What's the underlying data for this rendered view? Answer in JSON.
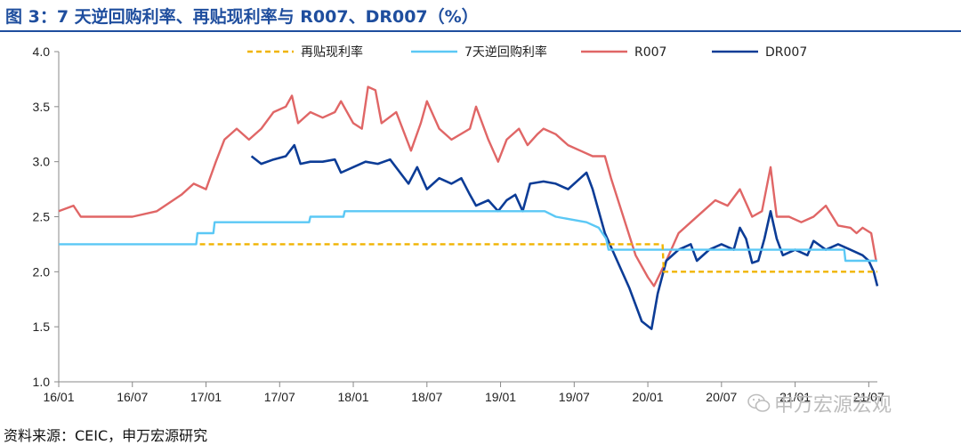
{
  "header": {
    "title": "图 3：7 天逆回购利率、再贴现利率与 R007、DR007（%）"
  },
  "footer": {
    "source": "资料来源：CEIC，申万宏源研究"
  },
  "watermark": {
    "text": "申万宏源宏观",
    "icon": "wechat-icon"
  },
  "chart_data": {
    "type": "line",
    "title": "图 3：7 天逆回购利率、再贴现利率与 R007、DR007（%）",
    "xlabel": "",
    "ylabel": "",
    "ylim": [
      1.0,
      4.0
    ],
    "yticks": [
      "4.0",
      "3.5",
      "3.0",
      "2.5",
      "2.0",
      "1.5",
      "1.0"
    ],
    "xticks": [
      "16/01",
      "16/07",
      "17/01",
      "17/07",
      "18/01",
      "18/07",
      "19/01",
      "19/07",
      "20/01",
      "20/07",
      "21/01",
      "21/07"
    ],
    "xlim": [
      0,
      66.7
    ],
    "grid": false,
    "legend": "top",
    "series": [
      {
        "name": "再贴现利率",
        "color": "#f0b400",
        "dash": true,
        "points": [
          [
            11.5,
            2.25
          ],
          [
            49.2,
            2.25
          ],
          [
            49.3,
            2.0
          ],
          [
            66.7,
            2.0
          ]
        ]
      },
      {
        "name": "7天逆回购利率",
        "color": "#5bc8f5",
        "dash": false,
        "points": [
          [
            0,
            2.25
          ],
          [
            11.2,
            2.25
          ],
          [
            11.3,
            2.35
          ],
          [
            12.6,
            2.35
          ],
          [
            12.7,
            2.45
          ],
          [
            20.4,
            2.45
          ],
          [
            20.5,
            2.5
          ],
          [
            23.2,
            2.5
          ],
          [
            23.3,
            2.55
          ],
          [
            39.6,
            2.55
          ],
          [
            40.5,
            2.5
          ],
          [
            43.0,
            2.45
          ],
          [
            44.0,
            2.4
          ],
          [
            44.6,
            2.3
          ],
          [
            44.8,
            2.2
          ],
          [
            64.0,
            2.2
          ],
          [
            64.1,
            2.1
          ],
          [
            66.7,
            2.1
          ]
        ]
      },
      {
        "name": "R007",
        "color": "#e06666",
        "dash": false,
        "points": [
          [
            0,
            2.55
          ],
          [
            1.2,
            2.6
          ],
          [
            1.8,
            2.5
          ],
          [
            4,
            2.5
          ],
          [
            6,
            2.5
          ],
          [
            8,
            2.55
          ],
          [
            10,
            2.7
          ],
          [
            11,
            2.8
          ],
          [
            12,
            2.75
          ],
          [
            12.8,
            3.0
          ],
          [
            13.5,
            3.2
          ],
          [
            14.5,
            3.3
          ],
          [
            15.5,
            3.2
          ],
          [
            16.5,
            3.3
          ],
          [
            17.5,
            3.45
          ],
          [
            18.5,
            3.5
          ],
          [
            19,
            3.6
          ],
          [
            19.5,
            3.35
          ],
          [
            20.5,
            3.45
          ],
          [
            21.5,
            3.4
          ],
          [
            22.5,
            3.45
          ],
          [
            23,
            3.55
          ],
          [
            24,
            3.35
          ],
          [
            24.7,
            3.3
          ],
          [
            25.2,
            3.68
          ],
          [
            25.8,
            3.65
          ],
          [
            26.3,
            3.35
          ],
          [
            27.5,
            3.45
          ],
          [
            28.7,
            3.1
          ],
          [
            29.5,
            3.35
          ],
          [
            30,
            3.55
          ],
          [
            31,
            3.3
          ],
          [
            32,
            3.2
          ],
          [
            33.5,
            3.3
          ],
          [
            34,
            3.5
          ],
          [
            35,
            3.2
          ],
          [
            35.8,
            3.0
          ],
          [
            36.5,
            3.2
          ],
          [
            37.5,
            3.3
          ],
          [
            38.2,
            3.15
          ],
          [
            39,
            3.25
          ],
          [
            39.5,
            3.3
          ],
          [
            40.5,
            3.25
          ],
          [
            41.5,
            3.15
          ],
          [
            42.5,
            3.1
          ],
          [
            43.5,
            3.05
          ],
          [
            44.5,
            3.05
          ],
          [
            45,
            2.85
          ],
          [
            46,
            2.5
          ],
          [
            47,
            2.15
          ],
          [
            48,
            1.95
          ],
          [
            48.5,
            1.87
          ],
          [
            49.5,
            2.1
          ],
          [
            50.5,
            2.35
          ],
          [
            51.5,
            2.45
          ],
          [
            52.5,
            2.55
          ],
          [
            53.5,
            2.65
          ],
          [
            54.5,
            2.6
          ],
          [
            55.5,
            2.75
          ],
          [
            56.5,
            2.5
          ],
          [
            57.3,
            2.55
          ],
          [
            58,
            2.95
          ],
          [
            58.5,
            2.5
          ],
          [
            59.5,
            2.5
          ],
          [
            60.5,
            2.45
          ],
          [
            61.5,
            2.5
          ],
          [
            62.5,
            2.6
          ],
          [
            63.5,
            2.42
          ],
          [
            64.5,
            2.4
          ],
          [
            65,
            2.35
          ],
          [
            65.5,
            2.4
          ],
          [
            66.2,
            2.35
          ],
          [
            66.6,
            2.1
          ]
        ]
      },
      {
        "name": "DR007",
        "color": "#0c3c96",
        "dash": false,
        "points": [
          [
            15.7,
            3.05
          ],
          [
            16.5,
            2.98
          ],
          [
            17.5,
            3.02
          ],
          [
            18.5,
            3.05
          ],
          [
            19.2,
            3.15
          ],
          [
            19.7,
            2.98
          ],
          [
            20.5,
            3.0
          ],
          [
            21.5,
            3.0
          ],
          [
            22.5,
            3.02
          ],
          [
            23,
            2.9
          ],
          [
            24,
            2.95
          ],
          [
            25,
            3.0
          ],
          [
            26,
            2.98
          ],
          [
            27,
            3.02
          ],
          [
            28.5,
            2.8
          ],
          [
            29.2,
            2.95
          ],
          [
            30,
            2.75
          ],
          [
            31,
            2.85
          ],
          [
            32,
            2.8
          ],
          [
            32.8,
            2.85
          ],
          [
            33.5,
            2.7
          ],
          [
            34,
            2.6
          ],
          [
            35,
            2.65
          ],
          [
            35.8,
            2.55
          ],
          [
            36.5,
            2.65
          ],
          [
            37.2,
            2.7
          ],
          [
            37.8,
            2.55
          ],
          [
            38.4,
            2.8
          ],
          [
            39.5,
            2.82
          ],
          [
            40.5,
            2.8
          ],
          [
            41.5,
            2.75
          ],
          [
            42.5,
            2.85
          ],
          [
            43,
            2.9
          ],
          [
            43.5,
            2.75
          ],
          [
            44.5,
            2.35
          ],
          [
            45.5,
            2.1
          ],
          [
            46.5,
            1.85
          ],
          [
            47.5,
            1.55
          ],
          [
            48.3,
            1.48
          ],
          [
            48.8,
            1.8
          ],
          [
            49.5,
            2.1
          ],
          [
            50.5,
            2.2
          ],
          [
            51.5,
            2.25
          ],
          [
            52,
            2.1
          ],
          [
            53,
            2.2
          ],
          [
            54,
            2.25
          ],
          [
            55,
            2.2
          ],
          [
            55.5,
            2.4
          ],
          [
            56,
            2.3
          ],
          [
            56.5,
            2.08
          ],
          [
            57,
            2.1
          ],
          [
            57.5,
            2.3
          ],
          [
            58,
            2.55
          ],
          [
            58.5,
            2.3
          ],
          [
            59,
            2.15
          ],
          [
            60,
            2.2
          ],
          [
            61,
            2.15
          ],
          [
            61.5,
            2.28
          ],
          [
            62.5,
            2.2
          ],
          [
            63.5,
            2.25
          ],
          [
            64.5,
            2.2
          ],
          [
            65.5,
            2.15
          ],
          [
            66,
            2.1
          ],
          [
            66.4,
            2.0
          ],
          [
            66.7,
            1.87
          ]
        ]
      }
    ]
  }
}
